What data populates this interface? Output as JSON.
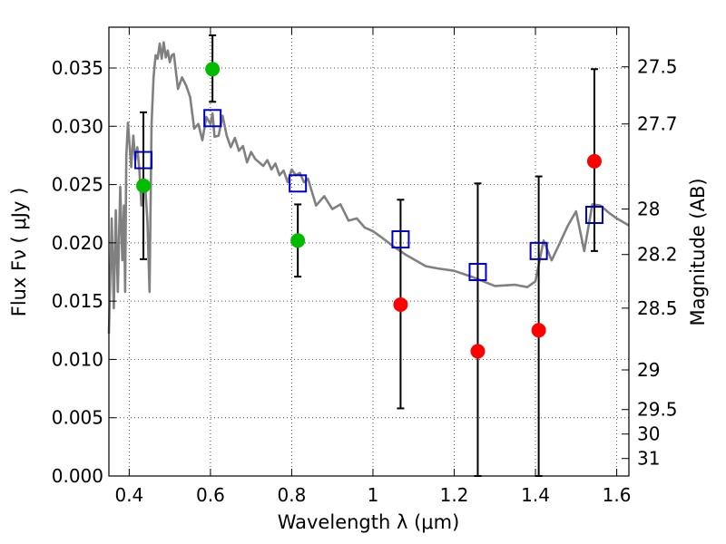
{
  "chart_data": {
    "type": "scatter",
    "title": "",
    "xlabel": "Wavelength  λ (μm)",
    "ylabel": "Flux  Fν  ( μJy )",
    "y2label": "Magnitude (AB)",
    "xlim": [
      0.35,
      1.63
    ],
    "ylim": [
      0.0,
      0.0385
    ],
    "grid": true,
    "x_ticks": [
      {
        "value": 0.4,
        "label": "0.4"
      },
      {
        "value": 0.6,
        "label": "0.6"
      },
      {
        "value": 0.8,
        "label": "0.8"
      },
      {
        "value": 1.0,
        "label": "1"
      },
      {
        "value": 1.2,
        "label": "1.2"
      },
      {
        "value": 1.4,
        "label": "1.4"
      },
      {
        "value": 1.6,
        "label": "1.6"
      }
    ],
    "y_ticks": [
      {
        "value": 0.0,
        "label": "0.000"
      },
      {
        "value": 0.005,
        "label": "0.005"
      },
      {
        "value": 0.01,
        "label": "0.010"
      },
      {
        "value": 0.015,
        "label": "0.015"
      },
      {
        "value": 0.02,
        "label": "0.020"
      },
      {
        "value": 0.025,
        "label": "0.025"
      },
      {
        "value": 0.03,
        "label": "0.030"
      },
      {
        "value": 0.035,
        "label": "0.035"
      }
    ],
    "y2_ticks": [
      {
        "label": "27.5",
        "flux": 0.0351
      },
      {
        "label": "27.7",
        "flux": 0.0302
      },
      {
        "label": "28",
        "flux": 0.0229
      },
      {
        "label": "28.2",
        "flux": 0.019
      },
      {
        "label": "28.5",
        "flux": 0.0144
      },
      {
        "label": "29",
        "flux": 0.0091
      },
      {
        "label": "29.5",
        "flux": 0.0057
      },
      {
        "label": "30",
        "flux": 0.0036
      },
      {
        "label": "31",
        "flux": 0.0015
      }
    ],
    "colors": {
      "model": "#808080",
      "optical": "#00bb00",
      "nir": "#ff0000",
      "model_bands": "#0000cc",
      "errorbar": "#000000"
    },
    "series": [
      {
        "kind": "model_spectrum",
        "x": [
          0.35,
          0.357,
          0.362,
          0.367,
          0.372,
          0.378,
          0.383,
          0.387,
          0.39,
          0.393,
          0.397,
          0.405,
          0.41,
          0.415,
          0.42,
          0.425,
          0.43,
          0.435,
          0.44,
          0.445,
          0.45,
          0.455,
          0.46,
          0.465,
          0.47,
          0.475,
          0.48,
          0.485,
          0.49,
          0.495,
          0.5,
          0.505,
          0.51,
          0.52,
          0.53,
          0.54,
          0.55,
          0.56,
          0.57,
          0.58,
          0.59,
          0.6,
          0.605,
          0.61,
          0.62,
          0.63,
          0.64,
          0.65,
          0.66,
          0.67,
          0.68,
          0.69,
          0.7,
          0.71,
          0.72,
          0.73,
          0.74,
          0.75,
          0.76,
          0.77,
          0.78,
          0.79,
          0.8,
          0.81,
          0.82,
          0.83,
          0.84,
          0.86,
          0.88,
          0.9,
          0.92,
          0.94,
          0.96,
          0.98,
          1.0,
          1.02,
          1.05,
          1.08,
          1.1,
          1.13,
          1.16,
          1.2,
          1.25,
          1.3,
          1.35,
          1.38,
          1.4,
          1.42,
          1.44,
          1.46,
          1.48,
          1.5,
          1.52,
          1.54,
          1.56,
          1.58,
          1.6,
          1.63
        ],
        "y": [
          0.0122,
          0.0221,
          0.0144,
          0.0228,
          0.0158,
          0.0248,
          0.0185,
          0.0232,
          0.0158,
          0.0275,
          0.0303,
          0.0265,
          0.0292,
          0.0271,
          0.0282,
          0.0262,
          0.0232,
          0.0255,
          0.0245,
          0.0218,
          0.0158,
          0.0302,
          0.0342,
          0.0361,
          0.0358,
          0.0371,
          0.0358,
          0.0372,
          0.0359,
          0.0365,
          0.0355,
          0.0361,
          0.0362,
          0.0332,
          0.0342,
          0.0335,
          0.0325,
          0.0298,
          0.0302,
          0.0288,
          0.0308,
          0.0302,
          0.0311,
          0.0291,
          0.0292,
          0.0309,
          0.0292,
          0.0282,
          0.029,
          0.0279,
          0.0283,
          0.0269,
          0.0278,
          0.0272,
          0.0269,
          0.0266,
          0.0271,
          0.0263,
          0.0268,
          0.0258,
          0.0262,
          0.0252,
          0.0263,
          0.0258,
          0.026,
          0.0252,
          0.0255,
          0.0232,
          0.024,
          0.0229,
          0.0233,
          0.0219,
          0.0221,
          0.0213,
          0.021,
          0.0205,
          0.0197,
          0.019,
          0.0186,
          0.018,
          0.0178,
          0.0176,
          0.017,
          0.0163,
          0.0164,
          0.0162,
          0.0167,
          0.0202,
          0.0185,
          0.02,
          0.0215,
          0.0227,
          0.0193,
          0.0233,
          0.0232,
          0.0226,
          0.0221,
          0.0215
        ]
      },
      {
        "kind": "model_bands",
        "x": [
          0.435,
          0.605,
          0.815,
          1.068,
          1.258,
          1.408,
          1.545
        ],
        "y": [
          0.0271,
          0.0307,
          0.0251,
          0.0203,
          0.0175,
          0.0193,
          0.0224
        ]
      },
      {
        "kind": "observed_optical",
        "x": [
          0.435,
          0.605,
          0.815
        ],
        "y": [
          0.0249,
          0.0349,
          0.0202
        ],
        "err_low": [
          0.0186,
          0.0321,
          0.0171
        ],
        "err_high": [
          0.0312,
          0.0378,
          0.0233
        ]
      },
      {
        "kind": "observed_nir",
        "x": [
          1.068,
          1.258,
          1.408,
          1.545
        ],
        "y": [
          0.0147,
          0.0107,
          0.0125,
          0.027
        ],
        "err_low": [
          0.0058,
          0.0,
          0.0,
          0.0193
        ],
        "err_high": [
          0.0237,
          0.0251,
          0.0257,
          0.0349
        ]
      }
    ]
  }
}
